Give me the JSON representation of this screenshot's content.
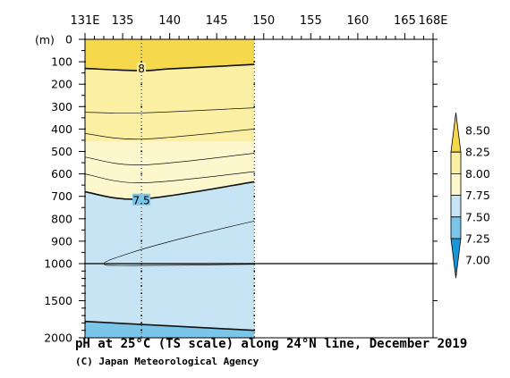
{
  "chart_data": {
    "type": "contour",
    "title": "pH at 25°C (TS scale) along 24°N line, December 2019",
    "credit": "(C) Japan Meteorological Agency",
    "ylabel": "(m)",
    "x_ticks": [
      {
        "value": 131,
        "label": "131E"
      },
      {
        "value": 135,
        "label": "135"
      },
      {
        "value": 140,
        "label": "140"
      },
      {
        "value": 145,
        "label": "145"
      },
      {
        "value": 150,
        "label": "150"
      },
      {
        "value": 155,
        "label": "155"
      },
      {
        "value": 160,
        "label": "160"
      },
      {
        "value": 165,
        "label": "165"
      },
      {
        "value": 168,
        "label": "168E"
      }
    ],
    "xlim": [
      131,
      168
    ],
    "y_ticks": [
      0,
      100,
      200,
      300,
      400,
      500,
      600,
      700,
      800,
      900,
      1000,
      1500,
      2000
    ],
    "y_scale": "split: linear 0–1000 m upper panel, linear 1000–2000 m lower panel",
    "ylim": [
      0,
      2000
    ],
    "data_extent_lon": [
      131,
      149
    ],
    "station_lons": [
      131,
      137,
      149
    ],
    "level_boundaries": [
      7.0,
      7.25,
      7.5,
      7.75,
      8.0,
      8.25,
      8.5
    ],
    "level_colors": [
      "#1a96d6",
      "#7bc5e8",
      "#c7e4f4",
      "#fcf7cc",
      "#faefa2",
      "#f5d84c"
    ],
    "colorbar_labels": [
      "8.50",
      "8.25",
      "8.00",
      "7.75",
      "7.50",
      "7.25",
      "7.00"
    ],
    "contour_labels": [
      "8",
      "7.5"
    ],
    "contours": [
      {
        "level": 8.0,
        "bold": true,
        "points": [
          [
            131,
            130
          ],
          [
            137,
            140
          ],
          [
            140,
            132
          ],
          [
            149,
            112
          ]
        ]
      },
      {
        "level": 7.9,
        "bold": false,
        "points": [
          [
            131,
            325
          ],
          [
            137,
            328
          ],
          [
            149,
            305
          ]
        ]
      },
      {
        "level": 7.8,
        "bold": false,
        "points": [
          [
            131,
            420
          ],
          [
            137,
            445
          ],
          [
            149,
            400
          ]
        ]
      },
      {
        "level": 7.7,
        "bold": false,
        "points": [
          [
            131,
            525
          ],
          [
            137,
            560
          ],
          [
            149,
            508
          ]
        ]
      },
      {
        "level": 7.6,
        "bold": false,
        "points": [
          [
            131,
            600
          ],
          [
            137,
            640
          ],
          [
            149,
            590
          ]
        ]
      },
      {
        "level": 7.5,
        "bold": true,
        "points": [
          [
            131,
            680
          ],
          [
            137,
            712
          ],
          [
            149,
            635
          ]
        ]
      },
      {
        "level": 7.4,
        "bold": false,
        "points": [
          [
            149,
            810
          ],
          [
            142,
            880
          ],
          [
            136,
            950
          ],
          [
            133,
            1000
          ],
          [
            136,
            1025
          ],
          [
            149,
            1010
          ]
        ]
      },
      {
        "level": 7.25,
        "bold": true,
        "points": [
          [
            131,
            1780
          ],
          [
            149,
            1900
          ]
        ]
      }
    ],
    "fill_boundaries_depth": [
      {
        "between": "8.25 and 8.00",
        "points": [
          [
            131,
            130
          ],
          [
            137,
            140
          ],
          [
            140,
            132
          ],
          [
            149,
            112
          ]
        ]
      },
      {
        "between": "8.00 and 7.75",
        "points": [
          [
            131,
            455
          ],
          [
            149,
            455
          ]
        ]
      },
      {
        "between": "7.75 and 7.50",
        "points": [
          [
            131,
            680
          ],
          [
            137,
            712
          ],
          [
            149,
            635
          ]
        ]
      },
      {
        "between": "7.50 and 7.25",
        "points": [
          [
            131,
            1780
          ],
          [
            149,
            1900
          ]
        ]
      }
    ]
  }
}
